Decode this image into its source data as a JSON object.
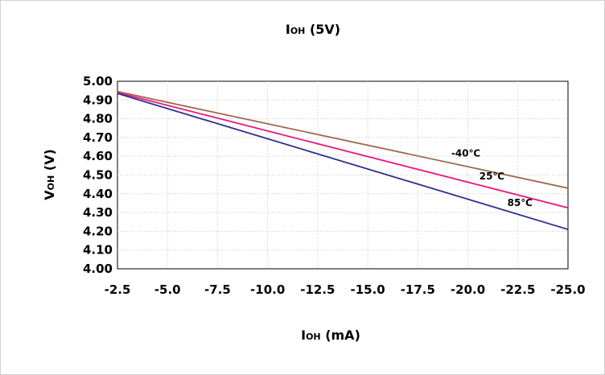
{
  "chart_data": {
    "type": "line",
    "title": {
      "main": "I",
      "sub": "OH",
      "rest": " (5V)"
    },
    "xlabel": {
      "main": "I",
      "sub": "OH",
      "rest": " (mA)"
    },
    "ylabel": {
      "main": "V",
      "sub": "OH",
      "rest": " (V)"
    },
    "xlim": [
      -2.5,
      -25.0
    ],
    "ylim": [
      4.0,
      5.0
    ],
    "x_ticks": [
      "-2.5",
      "-5.0",
      "-7.5",
      "-10.0",
      "-12.5",
      "-15.0",
      "-17.5",
      "-20.0",
      "-22.5",
      "-25.0"
    ],
    "y_ticks": [
      "4.00",
      "4.10",
      "4.20",
      "4.30",
      "4.40",
      "4.50",
      "4.60",
      "4.70",
      "4.80",
      "4.90",
      "5.00"
    ],
    "grid": true,
    "series": [
      {
        "name": "-40℃",
        "color": "#a0694b",
        "x": [
          -2.5,
          -25.0
        ],
        "y": [
          4.945,
          4.43
        ]
      },
      {
        "name": "25℃",
        "color": "#e8157a",
        "x": [
          -2.5,
          -25.0
        ],
        "y": [
          4.94,
          4.325
        ]
      },
      {
        "name": "85℃",
        "color": "#2b2f8c",
        "x": [
          -2.5,
          -25.0
        ],
        "y": [
          4.935,
          4.21
        ]
      }
    ]
  }
}
